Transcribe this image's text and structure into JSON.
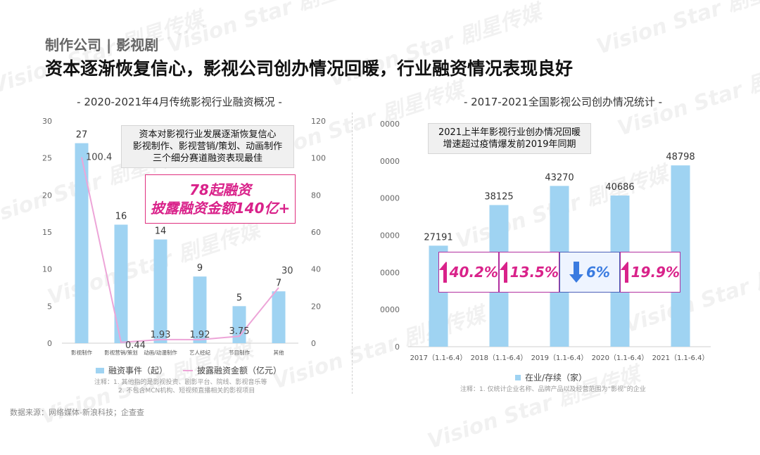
{
  "watermark": "Vision Star 剧星传媒",
  "header": {
    "category": "制作公司 | 影视剧",
    "headline": "资本逐渐恢复信心，影视公司创办情况回暖，行业融资情况表现良好"
  },
  "left_chart": {
    "title": "- 2020-2021年4月传统影视行业融资概况 -",
    "callout_gray": [
      "资本对影视行业发展逐渐恢复信心",
      "影视制作、影视营销/策划、动画制作",
      "三个细分赛道融资表现最佳"
    ],
    "callout_pink": [
      "78起融资",
      "披露融资金额140亿+"
    ],
    "legend_bar": "融资事件（起）",
    "legend_line": "披露融资金额（亿元）",
    "note_lines": [
      "注释：1. 其他指的是影视投资、剧影平台、院线、影视音乐等",
      "2. 不包含MCN机构、短视频直播相关的影视项目"
    ]
  },
  "right_chart": {
    "title": "- 2017-2021全国影视公司创办情况统计 -",
    "callout_gray": [
      "2021上半年影视行业创办情况回暖",
      "增速超过疫情爆发前2019年同期"
    ],
    "legend": "在业/存续（家）",
    "note": "注释：1. 仅统计企业名称、品牌产品以及经营范围为“影视”的企业",
    "growth": [
      {
        "value": "40.2%",
        "direction": "up"
      },
      {
        "value": "13.5%",
        "direction": "up"
      },
      {
        "value": "6%",
        "direction": "down"
      },
      {
        "value": "19.9%",
        "direction": "up"
      }
    ]
  },
  "source": "数据来源：网络媒体-新浪科技；企查查",
  "colors": {
    "bar": "#9fd3f2",
    "line": "#eda5d8",
    "up": "#d9228a",
    "down": "#3a7be0",
    "callout_border": "#e0307f"
  },
  "chart_data": [
    {
      "type": "bar",
      "title": "2020-2021年4月传统影视行业融资概况",
      "categories": [
        "影视制作",
        "影视营销/策划",
        "动画/动漫制作",
        "艺人经纪",
        "节目制作",
        "其他"
      ],
      "series": [
        {
          "name": "融资事件（起）",
          "type": "bar",
          "axis": "left",
          "values": [
            27,
            16,
            14,
            9,
            5,
            7
          ]
        },
        {
          "name": "披露融资金额（亿元）",
          "type": "line",
          "axis": "right",
          "values": [
            100.4,
            0.44,
            1.93,
            1.92,
            3.75,
            30
          ]
        }
      ],
      "ylim_left": [
        0,
        30
      ],
      "yticks_left": [
        0,
        5,
        10,
        15,
        20,
        25,
        30
      ],
      "ylim_right": [
        0,
        120
      ],
      "yticks_right": [
        0,
        20,
        40,
        60,
        80,
        100,
        120
      ],
      "value_labels": {
        "bars": [
          "27",
          "16",
          "14",
          "9",
          "5",
          "7"
        ],
        "line": [
          "100.4",
          "0.44",
          "1.93",
          "1.92",
          "3.75",
          "30"
        ]
      }
    },
    {
      "type": "bar",
      "title": "2017-2021全国影视公司创办情况统计",
      "categories": [
        "2017（1.1-6.4）",
        "2018（1.1-6.4）",
        "2019（1.1-6.4）",
        "2020（1.1-6.4）",
        "2021（1.1-6.4）"
      ],
      "series": [
        {
          "name": "在业/存续（家）",
          "values": [
            27191,
            38125,
            43270,
            40686,
            48798
          ]
        }
      ],
      "ylim": [
        0,
        60000
      ],
      "yticks": [
        0,
        10000,
        20000,
        30000,
        40000,
        50000,
        60000
      ],
      "value_labels": [
        "27191",
        "38125",
        "43270",
        "40686",
        "48798"
      ]
    }
  ]
}
